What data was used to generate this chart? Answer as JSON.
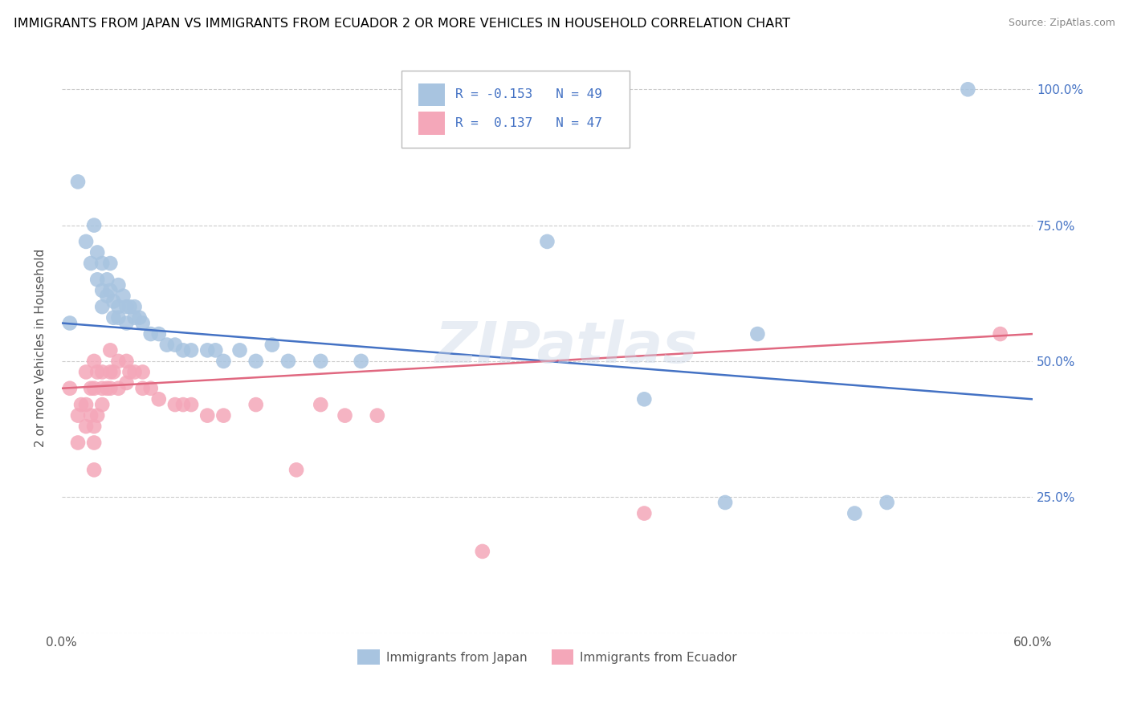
{
  "title": "IMMIGRANTS FROM JAPAN VS IMMIGRANTS FROM ECUADOR 2 OR MORE VEHICLES IN HOUSEHOLD CORRELATION CHART",
  "source": "Source: ZipAtlas.com",
  "ylabel": "2 or more Vehicles in Household",
  "xlim": [
    0.0,
    0.6
  ],
  "ylim": [
    0.0,
    1.05
  ],
  "ytick_values": [
    0.0,
    0.25,
    0.5,
    0.75,
    1.0
  ],
  "xtick_values": [
    0.0,
    0.1,
    0.2,
    0.3,
    0.4,
    0.5,
    0.6
  ],
  "legend_japan_r": "-0.153",
  "legend_japan_n": "49",
  "legend_ecuador_r": "0.137",
  "legend_ecuador_n": "47",
  "legend_labels": [
    "Immigrants from Japan",
    "Immigrants from Ecuador"
  ],
  "japan_color": "#a8c4e0",
  "ecuador_color": "#f4a7b9",
  "japan_line_color": "#4472c4",
  "ecuador_line_color": "#e06880",
  "watermark": "ZIPatlas",
  "japan_line": [
    0.57,
    0.43
  ],
  "ecuador_line": [
    0.45,
    0.55
  ],
  "japan_points": [
    [
      0.005,
      0.57
    ],
    [
      0.01,
      0.83
    ],
    [
      0.015,
      0.72
    ],
    [
      0.018,
      0.68
    ],
    [
      0.02,
      0.75
    ],
    [
      0.022,
      0.7
    ],
    [
      0.022,
      0.65
    ],
    [
      0.025,
      0.68
    ],
    [
      0.025,
      0.63
    ],
    [
      0.025,
      0.6
    ],
    [
      0.028,
      0.65
    ],
    [
      0.028,
      0.62
    ],
    [
      0.03,
      0.68
    ],
    [
      0.03,
      0.63
    ],
    [
      0.032,
      0.61
    ],
    [
      0.032,
      0.58
    ],
    [
      0.035,
      0.64
    ],
    [
      0.035,
      0.6
    ],
    [
      0.035,
      0.58
    ],
    [
      0.038,
      0.62
    ],
    [
      0.04,
      0.6
    ],
    [
      0.04,
      0.57
    ],
    [
      0.042,
      0.6
    ],
    [
      0.045,
      0.6
    ],
    [
      0.045,
      0.58
    ],
    [
      0.048,
      0.58
    ],
    [
      0.05,
      0.57
    ],
    [
      0.055,
      0.55
    ],
    [
      0.06,
      0.55
    ],
    [
      0.065,
      0.53
    ],
    [
      0.07,
      0.53
    ],
    [
      0.075,
      0.52
    ],
    [
      0.08,
      0.52
    ],
    [
      0.09,
      0.52
    ],
    [
      0.095,
      0.52
    ],
    [
      0.1,
      0.5
    ],
    [
      0.11,
      0.52
    ],
    [
      0.12,
      0.5
    ],
    [
      0.13,
      0.53
    ],
    [
      0.14,
      0.5
    ],
    [
      0.16,
      0.5
    ],
    [
      0.185,
      0.5
    ],
    [
      0.3,
      0.72
    ],
    [
      0.36,
      0.43
    ],
    [
      0.41,
      0.24
    ],
    [
      0.43,
      0.55
    ],
    [
      0.49,
      0.22
    ],
    [
      0.51,
      0.24
    ],
    [
      0.56,
      1.0
    ]
  ],
  "ecuador_points": [
    [
      0.005,
      0.45
    ],
    [
      0.01,
      0.4
    ],
    [
      0.01,
      0.35
    ],
    [
      0.012,
      0.42
    ],
    [
      0.015,
      0.48
    ],
    [
      0.015,
      0.42
    ],
    [
      0.015,
      0.38
    ],
    [
      0.018,
      0.45
    ],
    [
      0.018,
      0.4
    ],
    [
      0.02,
      0.5
    ],
    [
      0.02,
      0.45
    ],
    [
      0.02,
      0.38
    ],
    [
      0.02,
      0.35
    ],
    [
      0.02,
      0.3
    ],
    [
      0.022,
      0.48
    ],
    [
      0.022,
      0.4
    ],
    [
      0.025,
      0.48
    ],
    [
      0.025,
      0.45
    ],
    [
      0.025,
      0.42
    ],
    [
      0.028,
      0.45
    ],
    [
      0.03,
      0.52
    ],
    [
      0.03,
      0.48
    ],
    [
      0.03,
      0.45
    ],
    [
      0.032,
      0.48
    ],
    [
      0.035,
      0.5
    ],
    [
      0.035,
      0.45
    ],
    [
      0.04,
      0.5
    ],
    [
      0.04,
      0.46
    ],
    [
      0.042,
      0.48
    ],
    [
      0.045,
      0.48
    ],
    [
      0.05,
      0.48
    ],
    [
      0.05,
      0.45
    ],
    [
      0.055,
      0.45
    ],
    [
      0.06,
      0.43
    ],
    [
      0.07,
      0.42
    ],
    [
      0.075,
      0.42
    ],
    [
      0.08,
      0.42
    ],
    [
      0.09,
      0.4
    ],
    [
      0.1,
      0.4
    ],
    [
      0.12,
      0.42
    ],
    [
      0.145,
      0.3
    ],
    [
      0.16,
      0.42
    ],
    [
      0.175,
      0.4
    ],
    [
      0.195,
      0.4
    ],
    [
      0.26,
      0.15
    ],
    [
      0.36,
      0.22
    ],
    [
      0.58,
      0.55
    ]
  ]
}
